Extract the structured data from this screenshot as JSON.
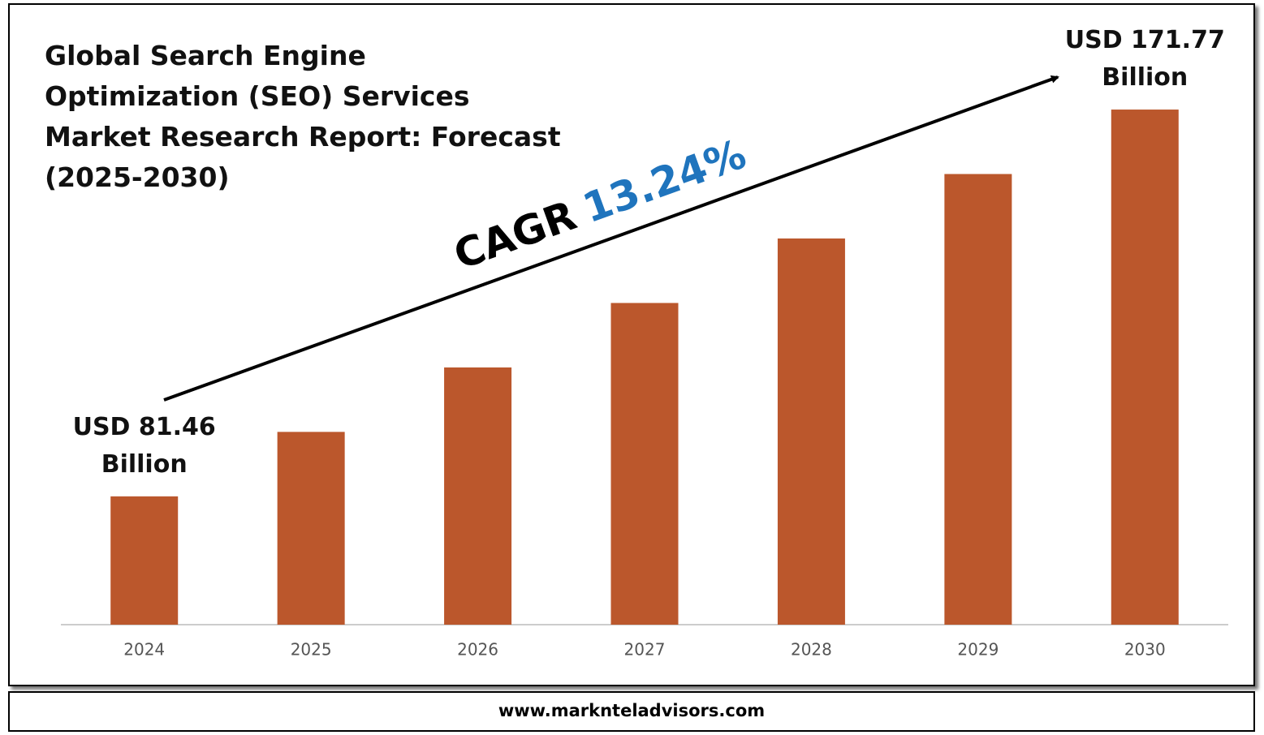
{
  "chart_data": {
    "type": "bar",
    "title": "Global Search Engine Optimization (SEO) Services Market Research Report: Forecast (2025-2030)",
    "categories": [
      "2024",
      "2025",
      "2026",
      "2027",
      "2028",
      "2029",
      "2030"
    ],
    "values": [
      81.46,
      96.51,
      111.56,
      126.61,
      141.67,
      156.72,
      171.77
    ],
    "value_labels": [
      "USD 81.46 Billion",
      null,
      null,
      null,
      null,
      null,
      "USD 171.77 Billion"
    ],
    "color": "#bb572c",
    "ylim": [
      51.5,
      175
    ],
    "cagr_label": "CAGR",
    "cagr_value": "13.24%",
    "cagr_color": "#1f74bd",
    "footer": "www.marknteladvisors.com"
  }
}
